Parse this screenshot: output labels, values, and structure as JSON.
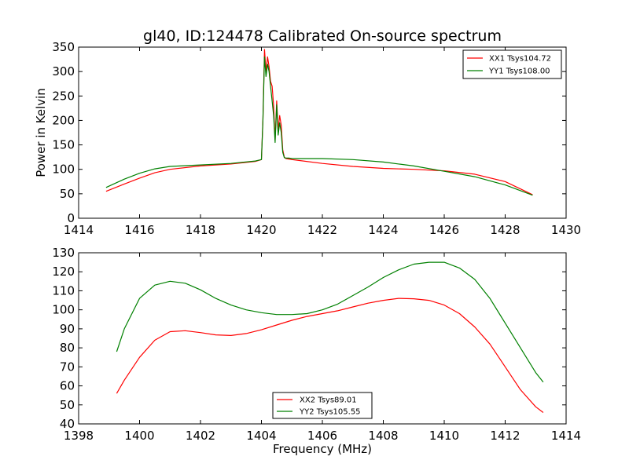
{
  "chart_data": [
    {
      "type": "line",
      "title": "gl40, ID:124478 Calibrated On-source spectrum",
      "xlabel": "",
      "ylabel": "Power in Kelvin",
      "xlim": [
        1414,
        1430
      ],
      "ylim": [
        0,
        350
      ],
      "xticks": [
        1414,
        1416,
        1418,
        1420,
        1422,
        1424,
        1426,
        1428,
        1430
      ],
      "yticks": [
        0,
        50,
        100,
        150,
        200,
        250,
        300,
        350
      ],
      "legend_position": "top-right",
      "series": [
        {
          "name": "XX1 Tsys104.72",
          "color": "#ff0000",
          "x": [
            1414.9,
            1415.5,
            1416.0,
            1416.5,
            1417.0,
            1418.0,
            1419.0,
            1419.8,
            1420.0,
            1420.05,
            1420.1,
            1420.15,
            1420.2,
            1420.25,
            1420.3,
            1420.35,
            1420.4,
            1420.45,
            1420.5,
            1420.55,
            1420.6,
            1420.65,
            1420.7,
            1420.75,
            1420.8,
            1420.9,
            1421.0,
            1422.0,
            1423.0,
            1424.0,
            1425.0,
            1426.0,
            1427.0,
            1428.0,
            1428.9
          ],
          "y": [
            55,
            70,
            82,
            93,
            100,
            107,
            111,
            116,
            120,
            200,
            345,
            300,
            330,
            310,
            280,
            270,
            230,
            160,
            240,
            180,
            210,
            190,
            140,
            125,
            122,
            121,
            120,
            112,
            106,
            102,
            100,
            97,
            90,
            75,
            48
          ]
        },
        {
          "name": "YY1 Tsys108.00",
          "color": "#008000",
          "x": [
            1414.9,
            1415.5,
            1416.0,
            1416.5,
            1417.0,
            1418.0,
            1419.0,
            1419.8,
            1420.0,
            1420.05,
            1420.1,
            1420.15,
            1420.2,
            1420.25,
            1420.3,
            1420.35,
            1420.4,
            1420.45,
            1420.5,
            1420.55,
            1420.6,
            1420.65,
            1420.7,
            1420.75,
            1420.8,
            1420.9,
            1421.0,
            1422.0,
            1423.0,
            1424.0,
            1425.0,
            1426.0,
            1427.0,
            1428.0,
            1428.9
          ],
          "y": [
            63,
            80,
            92,
            101,
            106,
            109,
            112,
            117,
            120,
            200,
            330,
            290,
            315,
            300,
            270,
            240,
            210,
            155,
            232,
            170,
            195,
            175,
            135,
            124,
            123,
            123,
            122,
            122,
            120,
            115,
            107,
            96,
            85,
            68,
            47
          ]
        }
      ]
    },
    {
      "type": "line",
      "title": "",
      "xlabel": "Frequency (MHz)",
      "ylabel": "",
      "xlim": [
        1398,
        1414
      ],
      "ylim": [
        40,
        130
      ],
      "xticks": [
        1398,
        1400,
        1402,
        1404,
        1406,
        1408,
        1410,
        1412,
        1414
      ],
      "yticks": [
        40,
        50,
        60,
        70,
        80,
        90,
        100,
        110,
        120,
        130
      ],
      "legend_position": "bottom-center",
      "series": [
        {
          "name": "XX2 Tsys89.01",
          "color": "#ff0000",
          "x": [
            1399.25,
            1399.5,
            1400.0,
            1400.5,
            1401.0,
            1401.5,
            1402.0,
            1402.5,
            1403.0,
            1403.5,
            1404.0,
            1404.5,
            1405.0,
            1405.5,
            1406.0,
            1406.5,
            1407.0,
            1407.5,
            1408.0,
            1408.5,
            1409.0,
            1409.5,
            1410.0,
            1410.5,
            1411.0,
            1411.5,
            1412.0,
            1412.5,
            1413.0,
            1413.25
          ],
          "y": [
            56,
            63,
            75,
            84,
            88.5,
            89,
            88,
            86.8,
            86.5,
            87.5,
            89.5,
            92,
            94.5,
            96.5,
            98,
            99.5,
            101.5,
            103.5,
            105,
            106,
            105.8,
            105,
            102.5,
            98,
            91,
            82,
            70,
            58,
            49,
            46
          ]
        },
        {
          "name": "YY2 Tsys105.55",
          "color": "#008000",
          "x": [
            1399.25,
            1399.5,
            1400.0,
            1400.5,
            1401.0,
            1401.5,
            1402.0,
            1402.5,
            1403.0,
            1403.5,
            1404.0,
            1404.5,
            1405.0,
            1405.5,
            1406.0,
            1406.5,
            1407.0,
            1407.5,
            1408.0,
            1408.5,
            1409.0,
            1409.5,
            1410.0,
            1410.5,
            1411.0,
            1411.5,
            1412.0,
            1412.5,
            1413.0,
            1413.25
          ],
          "y": [
            78,
            90,
            106,
            113,
            115,
            114,
            110.5,
            106,
            102.5,
            100,
            98.5,
            97.5,
            97.5,
            98,
            100,
            103,
            107.5,
            112,
            117,
            121,
            124,
            125,
            125,
            122,
            116,
            106,
            93,
            80,
            67,
            62
          ]
        }
      ]
    }
  ]
}
